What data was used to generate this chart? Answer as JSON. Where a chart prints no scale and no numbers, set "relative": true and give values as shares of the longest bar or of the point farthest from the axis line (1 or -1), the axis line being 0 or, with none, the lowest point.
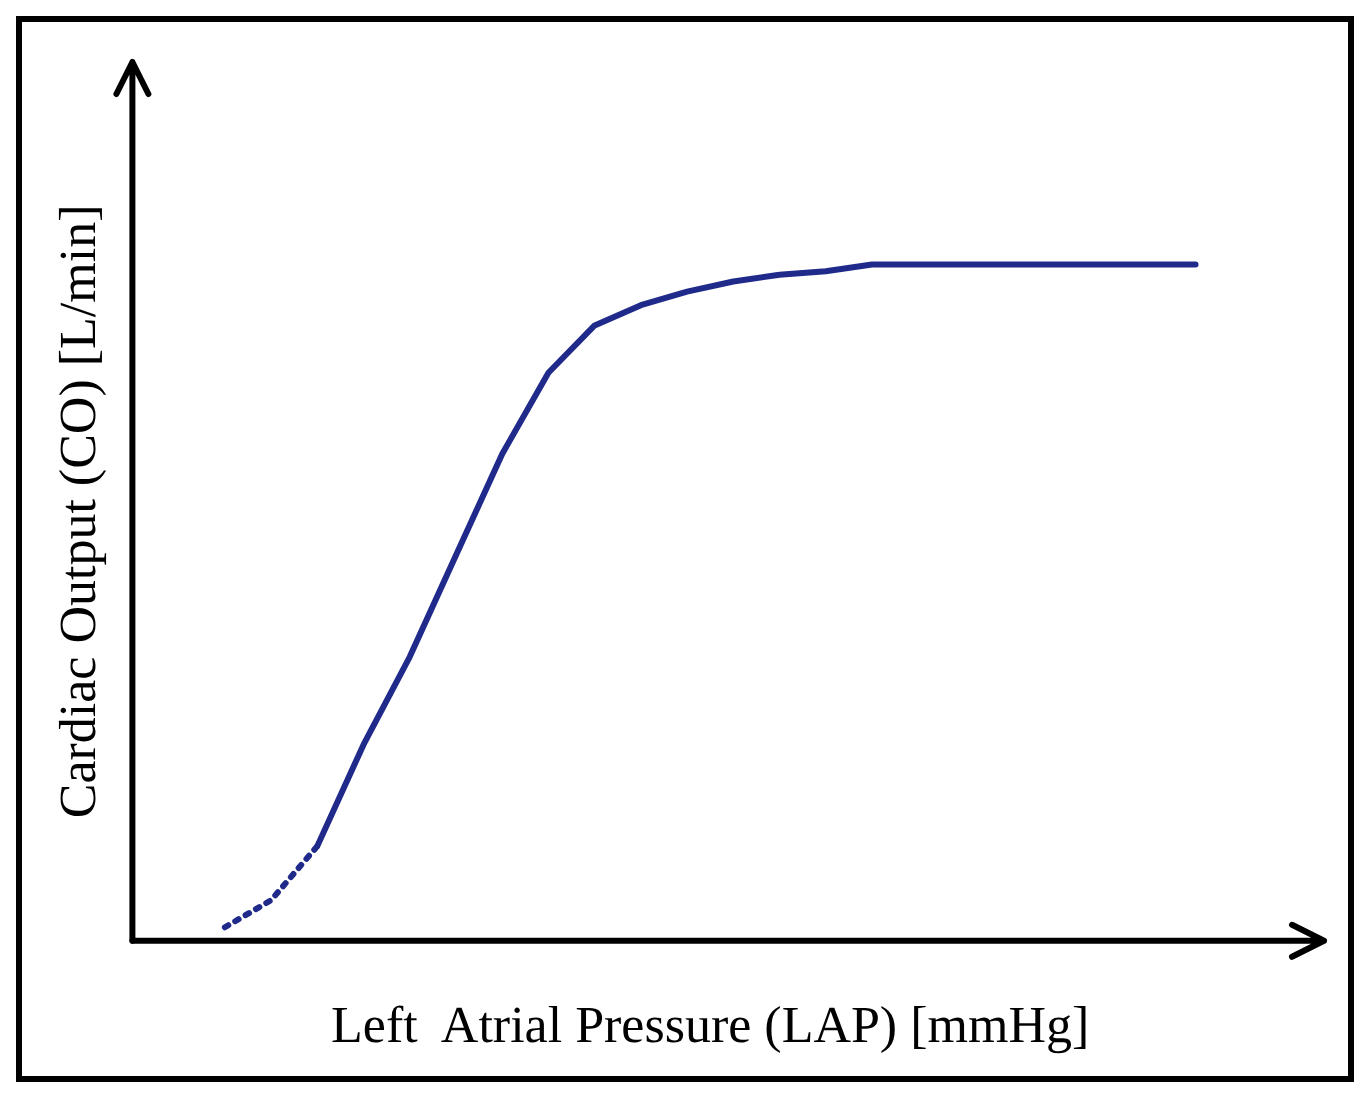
{
  "chart_data": {
    "type": "line",
    "relative": true,
    "xlabel": "Left  Atrial Pressure (LAP) [mmHg]",
    "ylabel": "Cardiac Output (CO) [L/min]",
    "categories": [
      null,
      null,
      null,
      null,
      null,
      null,
      null,
      null,
      null,
      null,
      null,
      null,
      null,
      null,
      null,
      null,
      null,
      null,
      null,
      null,
      null,
      null,
      null,
      null,
      null,
      null
    ],
    "series": [
      {
        "color": "#1f2a8a",
        "line_style": "dotted",
        "values": [
          null,
          null,
          0.02,
          0.06,
          0.14,
          null,
          null,
          null,
          null,
          null,
          null,
          null,
          null,
          null,
          null,
          null,
          null,
          null,
          null,
          null,
          null,
          null,
          null,
          null,
          null,
          null
        ]
      },
      {
        "color": "#1f2a8a",
        "line_style": "solid",
        "values": [
          null,
          null,
          null,
          null,
          0.14,
          0.29,
          0.42,
          0.57,
          0.72,
          0.84,
          0.91,
          0.94,
          0.96,
          0.975,
          0.985,
          0.99,
          1,
          1,
          1,
          1,
          1,
          1,
          1,
          1,
          null,
          null
        ]
      }
    ]
  }
}
